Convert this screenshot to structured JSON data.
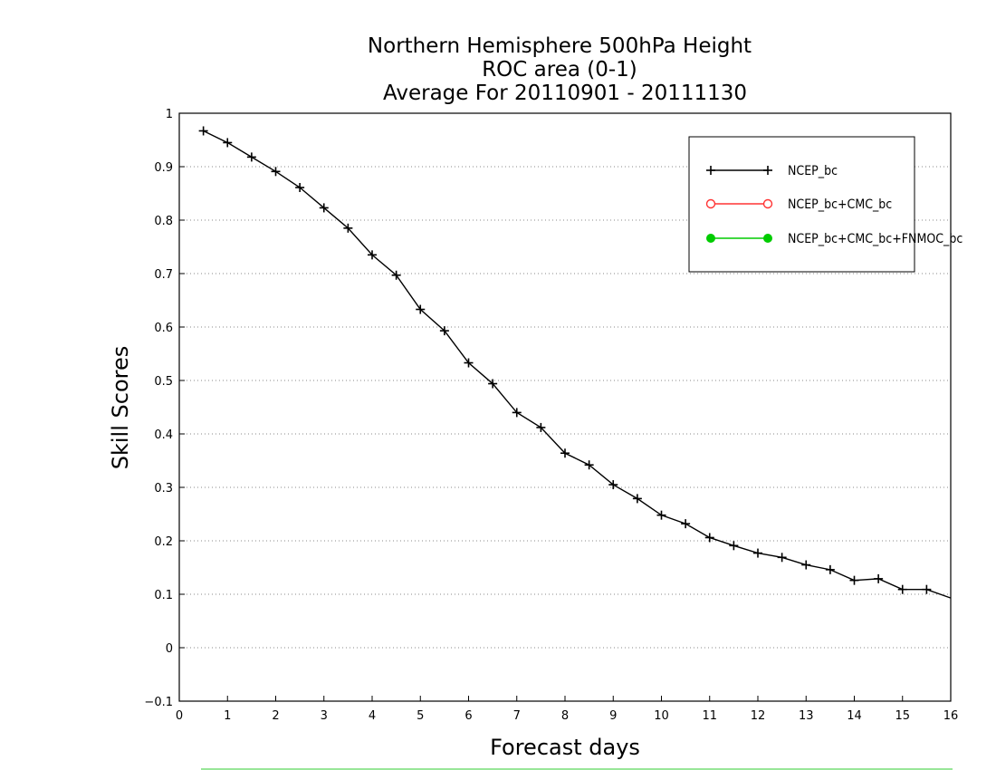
{
  "chart_data": {
    "type": "line",
    "title_lines": [
      "Northern Hemisphere 500hPa Height",
      "ROC area (0-1)",
      "Average For 20110901 - 20111130"
    ],
    "xlabel": "Forecast days",
    "ylabel": "Skill Scores",
    "xlim": [
      0,
      16
    ],
    "ylim": [
      -0.1,
      1
    ],
    "x_ticks": [
      "0",
      "1",
      "2",
      "3",
      "4",
      "5",
      "6",
      "7",
      "8",
      "9",
      "10",
      "11",
      "12",
      "13",
      "14",
      "15",
      "16"
    ],
    "y_ticks": [
      "−0.1",
      "0",
      "0.1",
      "0.2",
      "0.3",
      "0.4",
      "0.5",
      "0.6",
      "0.7",
      "0.8",
      "0.9",
      "1"
    ],
    "y_tick_values": [
      -0.1,
      0,
      0.1,
      0.2,
      0.3,
      0.4,
      0.5,
      0.6,
      0.7,
      0.8,
      0.9,
      1
    ],
    "grid": "horizontal-dotted",
    "legend_position": "top-right",
    "series": [
      {
        "name": "NCEP_bc",
        "color": "#000000",
        "marker": "plus",
        "x": [
          0.5,
          1,
          1.5,
          2,
          2.5,
          3,
          3.5,
          4,
          4.5,
          5,
          5.5,
          6,
          6.5,
          7,
          7.5,
          8,
          8.5,
          9,
          9.5,
          10,
          10.5,
          11,
          11.5,
          12,
          12.5,
          13,
          13.5,
          14,
          14.5,
          15,
          15.5,
          16
        ],
        "values": [
          0.967,
          0.945,
          0.918,
          0.891,
          0.861,
          0.823,
          0.785,
          0.735,
          0.697,
          0.633,
          0.593,
          0.533,
          0.494,
          0.44,
          0.412,
          0.364,
          0.342,
          0.305,
          0.279,
          0.248,
          0.232,
          0.206,
          0.191,
          0.177,
          0.169,
          0.155,
          0.146,
          0.126,
          0.129,
          0.109,
          0.109,
          0.093
        ]
      },
      {
        "name": "NCEP_bc+CMC_bc",
        "color": "#ff3333",
        "marker": "circle-open",
        "x": [],
        "values": []
      },
      {
        "name": "NCEP_bc+CMC_bc+FNMOC_bc",
        "color": "#00cc00",
        "marker": "circle-filled",
        "x": [],
        "values": []
      }
    ]
  }
}
